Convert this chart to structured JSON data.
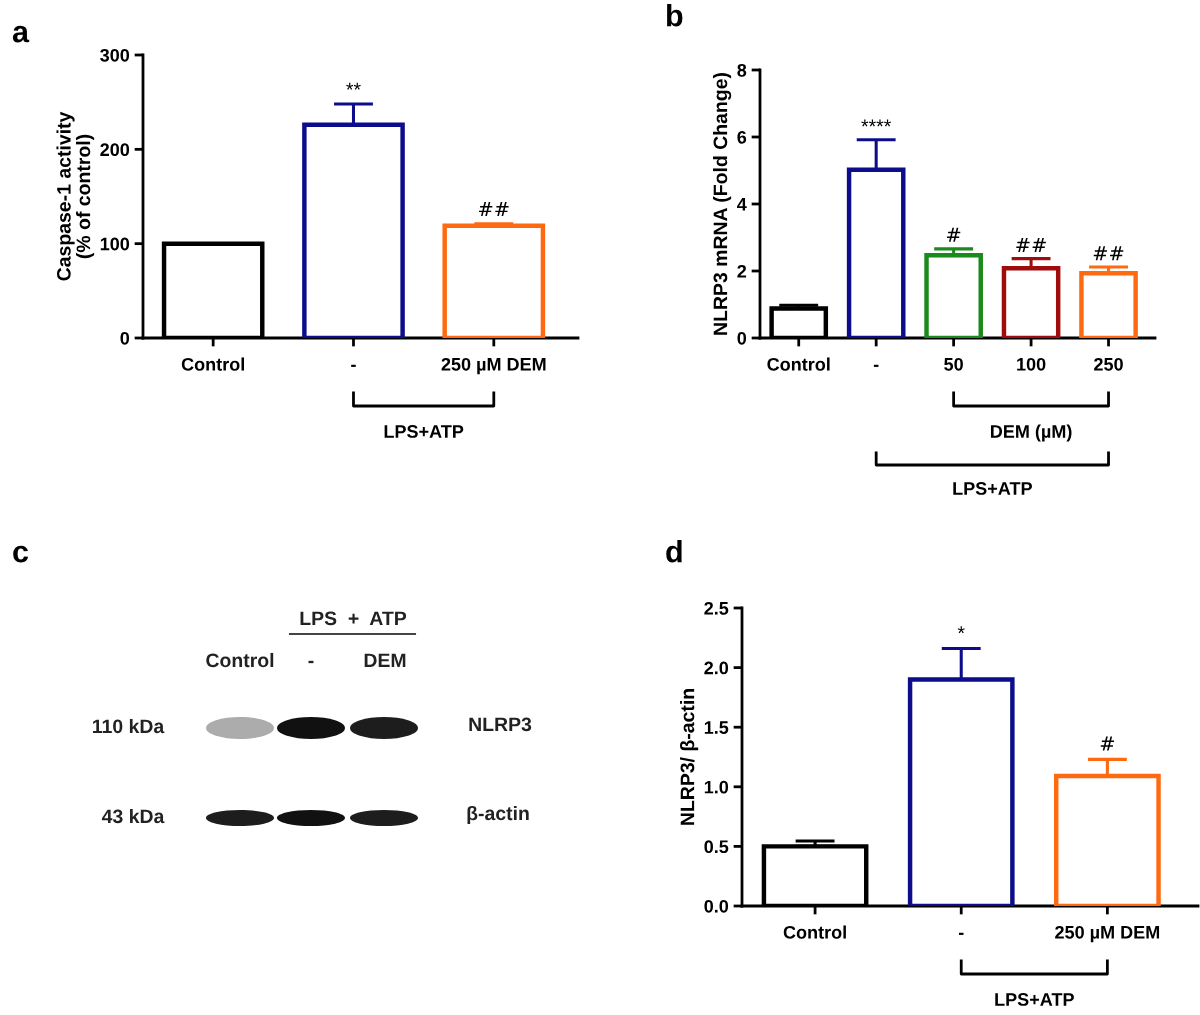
{
  "chart_data": [
    {
      "type": "bar",
      "title": "a",
      "ylabel": "Caspase-1 activity\n(% of control)",
      "categories": [
        "Control",
        "-",
        "250 µM DEM"
      ],
      "values": [
        100,
        226,
        119
      ],
      "colors": [
        "#000000",
        "#0d0d8c",
        "#ff6a10"
      ],
      "errors": [
        null,
        [
          226,
          248
        ],
        [
          119,
          121
        ]
      ],
      "ylim": [
        0,
        300
      ],
      "yticks": [
        0,
        100,
        200,
        300
      ],
      "grid": false,
      "legend": false,
      "annotations": [
        {
          "text": "**",
          "x": "-",
          "y": 252
        },
        {
          "text": "##",
          "x": "250 µM DEM",
          "y": 125
        },
        "LPS+ATP"
      ]
    },
    {
      "type": "bar",
      "title": "b",
      "ylabel": "NLRP3 mRNA (Fold Change)",
      "categories": [
        "Control",
        "-",
        "50",
        "100",
        "250"
      ],
      "values": [
        0.88,
        5.02,
        2.47,
        2.08,
        1.93
      ],
      "colors": [
        "#000000",
        "#0d0d8c",
        "#1a8a1a",
        "#a00c0c",
        "#ff6a10"
      ],
      "errors": [
        [
          0.88,
          0.98
        ],
        [
          5.02,
          5.92
        ],
        [
          2.47,
          2.66
        ],
        [
          2.08,
          2.37
        ],
        [
          1.93,
          2.12
        ]
      ],
      "ylim": [
        0,
        8
      ],
      "yticks": [
        0,
        2,
        4,
        6,
        8
      ],
      "grid": false,
      "legend": false,
      "annotations": [
        {
          "text": "****",
          "x": "-",
          "y": 6.0
        },
        {
          "text": "#",
          "x": "50",
          "y": 2.75
        },
        {
          "text": "##",
          "x": "100",
          "y": 2.45
        },
        {
          "text": "##",
          "x": "250",
          "y": 2.2
        },
        "DEM (µM)",
        "LPS+ATP"
      ]
    },
    {
      "type": "other",
      "title": "c",
      "annotations": [
        "LPS  +  ATP",
        "Control",
        "-",
        "DEM",
        "110 kDa",
        "43 kDa",
        "NLRP3",
        "β-actin"
      ]
    },
    {
      "type": "bar",
      "title": "d",
      "ylabel": "NLRP3/ β-actin",
      "categories": [
        "Control",
        "-",
        "250 µM DEM"
      ],
      "values": [
        0.5,
        1.9,
        1.09
      ],
      "colors": [
        "#000000",
        "#0d0d8c",
        "#ff6a10"
      ],
      "errors": [
        [
          0.5,
          0.546
        ],
        [
          1.9,
          2.16
        ],
        [
          1.09,
          1.23
        ]
      ],
      "ylim": [
        0,
        2.5
      ],
      "yticks": [
        {
          "value": 0,
          "label": "0.0"
        },
        {
          "value": 0.5,
          "label": "0.5"
        },
        {
          "value": 1.0,
          "label": "1.0"
        },
        {
          "value": 1.5,
          "label": "1.5"
        },
        {
          "value": 2.0,
          "label": "2.0"
        },
        {
          "value": 2.5,
          "label": "2.5"
        }
      ],
      "grid": false,
      "legend": false,
      "annotations": [
        {
          "text": "*",
          "x": "-",
          "y": 2.2
        },
        {
          "text": "#",
          "x": "250 µM DEM",
          "y": 1.27
        },
        "LPS+ATP"
      ]
    }
  ]
}
